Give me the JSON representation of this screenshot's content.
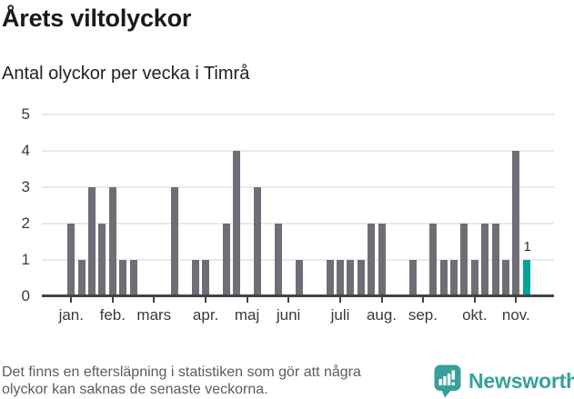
{
  "header": {
    "title": "Årets viltolyckor",
    "subtitle": "Antal olyckor per vecka i Timrå"
  },
  "footer": {
    "note_line1": "Det finns en eftersläpning i statistiken som gör att några",
    "note_line2": "olyckor kan saknas de senaste veckorna.",
    "brand": "Newsworthy"
  },
  "colors": {
    "bar": "#6e6e76",
    "accent": "#00a39b",
    "brand": "#38a09a",
    "gridline": "#e9e9e9",
    "axis": "#434343"
  },
  "chart_data": {
    "type": "bar",
    "title": "Årets viltolyckor",
    "subtitle": "Antal olyckor per vecka i Timrå",
    "xlabel": "",
    "ylabel": "Antal olyckor per vecka",
    "ylim": [
      0,
      5
    ],
    "yticks": [
      0,
      1,
      2,
      3,
      4,
      5
    ],
    "grid": "horizontal",
    "legend": "none",
    "values": [
      2,
      1,
      3,
      2,
      3,
      1,
      1,
      0,
      0,
      0,
      3,
      0,
      1,
      1,
      0,
      2,
      4,
      0,
      3,
      0,
      2,
      0,
      1,
      0,
      0,
      1,
      1,
      1,
      1,
      2,
      2,
      0,
      0,
      1,
      0,
      2,
      1,
      1,
      2,
      1,
      2,
      2,
      1,
      4,
      1
    ],
    "highlight_index": 44,
    "highlight_label": "1",
    "x_tick_labels": [
      "jan.",
      "feb.",
      "mars",
      "apr.",
      "maj",
      "juni",
      "juli",
      "aug.",
      "sep.",
      "okt.",
      "nov."
    ],
    "x_tick_week_index": [
      0,
      4,
      8,
      13,
      17,
      21,
      26,
      30,
      34,
      39,
      43
    ]
  }
}
